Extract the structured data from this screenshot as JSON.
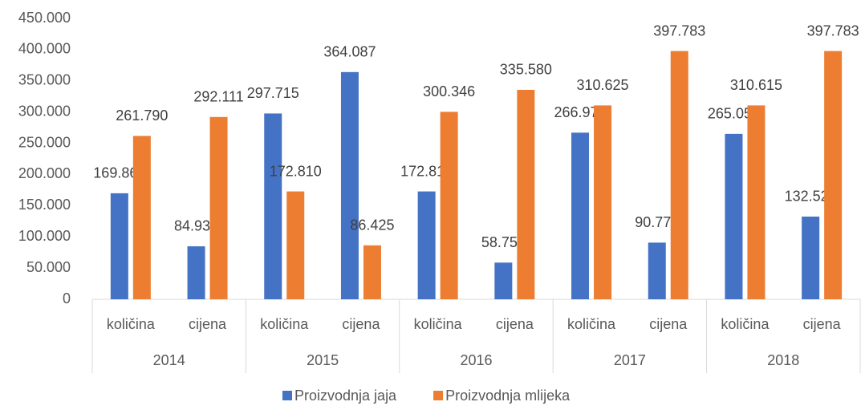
{
  "chart_data": {
    "type": "bar",
    "categories": [
      "količina",
      "cijena",
      "količina",
      "cijena",
      "količina",
      "cijena",
      "količina",
      "cijena",
      "količina",
      "cijena"
    ],
    "groups": [
      "2014",
      "2015",
      "2016",
      "2017",
      "2018"
    ],
    "series": [
      {
        "name": "Proizvodnja jaja",
        "color": "#4472c4",
        "values": [
          169866,
          84933,
          297715,
          364087,
          172812,
          58756,
          266978,
          90773,
          265050,
          132525
        ],
        "value_labels": [
          "169.866",
          "84.933",
          "297.715",
          "364.087",
          "172.812",
          "58.756",
          "266.978",
          "90.773",
          "265.050",
          "132.525"
        ]
      },
      {
        "name": "Proizvodnja mlijeka",
        "color": "#ed7d31",
        "values": [
          261790,
          292111,
          172810,
          86425,
          300346,
          335580,
          310625,
          397783,
          310615,
          397783
        ],
        "value_labels": [
          "261.790",
          "292.111",
          "172.810",
          "86.425",
          "300.346",
          "335.580",
          "310.625",
          "397.783",
          "310.615",
          "397.783"
        ]
      }
    ],
    "ylim": [
      0,
      450000
    ],
    "yticks": [
      0,
      {
        "value": 50000,
        "label": "50.000"
      },
      {
        "value": 100000,
        "label": "100.000"
      },
      {
        "value": 150000,
        "label": "150.000"
      },
      {
        "value": 200000,
        "label": "200.000"
      },
      {
        "value": 250000,
        "label": "250.000"
      },
      {
        "value": 300000,
        "label": "300.000"
      },
      {
        "value": 350000,
        "label": "350.000"
      },
      {
        "value": 400000,
        "label": "400.000"
      },
      {
        "value": 450000,
        "label": "450.000"
      }
    ],
    "grid": false,
    "legend": "bottom"
  }
}
